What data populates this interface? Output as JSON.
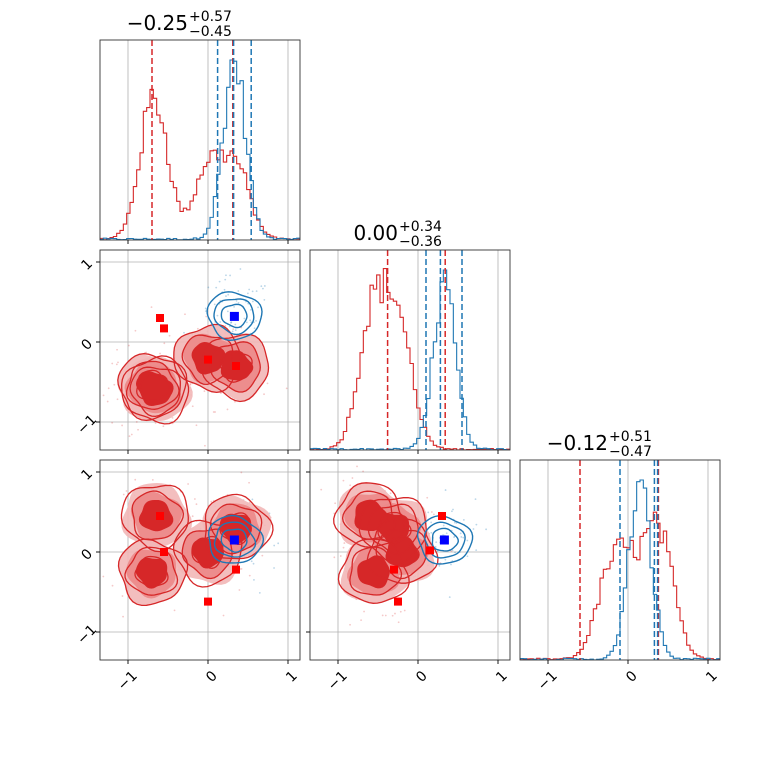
{
  "chart_data": {
    "type": "corner",
    "colors": {
      "blue": "#1f77b4",
      "red": "#d62728",
      "grid": "#b0b0b0",
      "marker_blue": "#0000ff",
      "marker_red": "#ff0000"
    },
    "axis_range": [
      -1.35,
      1.15
    ],
    "ticks": [
      -1,
      0,
      1
    ],
    "tick_labels": [
      "−1",
      "0",
      "1"
    ],
    "titles": [
      {
        "main": "−0.25",
        "upper": "+0.57",
        "lower": "−0.45"
      },
      {
        "main": "0.00",
        "upper": "+0.34",
        "lower": "−0.36"
      },
      {
        "main": "−0.12",
        "upper": "+0.51",
        "lower": "−0.47"
      }
    ],
    "quantile_lines": [
      {
        "blue": [
          0.12,
          0.32,
          0.54
        ],
        "red": [
          -0.7,
          0.31
        ]
      },
      {
        "blue": [
          0.1,
          0.28,
          0.55
        ],
        "red": [
          -0.38,
          0.34
        ]
      },
      {
        "blue": [
          -0.1,
          0.33,
          0.37
        ],
        "red": [
          -0.6,
          0.38
        ]
      }
    ],
    "series": [
      {
        "name": "",
        "color": "blue",
        "means": [
          0.33,
          0.33,
          0.15
        ]
      },
      {
        "name": "",
        "color": "red",
        "components": [
          [
            -0.7,
            -0.55,
            -0.25
          ],
          [
            -0.65,
            -0.6,
            0.45
          ],
          [
            0.0,
            -0.2,
            0.0
          ],
          [
            0.35,
            -0.3,
            0.3
          ]
        ]
      }
    ],
    "red_markers": {
      "p10": [
        [
          -0.6,
          0.3
        ],
        [
          -0.55,
          0.17
        ],
        [
          0.0,
          -0.22
        ],
        [
          0.35,
          -0.3
        ]
      ],
      "p20": [
        [
          -0.6,
          0.45
        ],
        [
          -0.55,
          0.0
        ],
        [
          0.0,
          -0.62
        ],
        [
          0.35,
          -0.22
        ]
      ],
      "p21": [
        [
          -0.25,
          -0.62
        ],
        [
          -0.3,
          -0.22
        ],
        [
          0.15,
          0.02
        ],
        [
          0.3,
          0.45
        ]
      ]
    },
    "blue_markers": {
      "p10": [
        0.33,
        0.32
      ],
      "p20": [
        0.33,
        0.15
      ],
      "p21": [
        0.33,
        0.15
      ]
    }
  }
}
